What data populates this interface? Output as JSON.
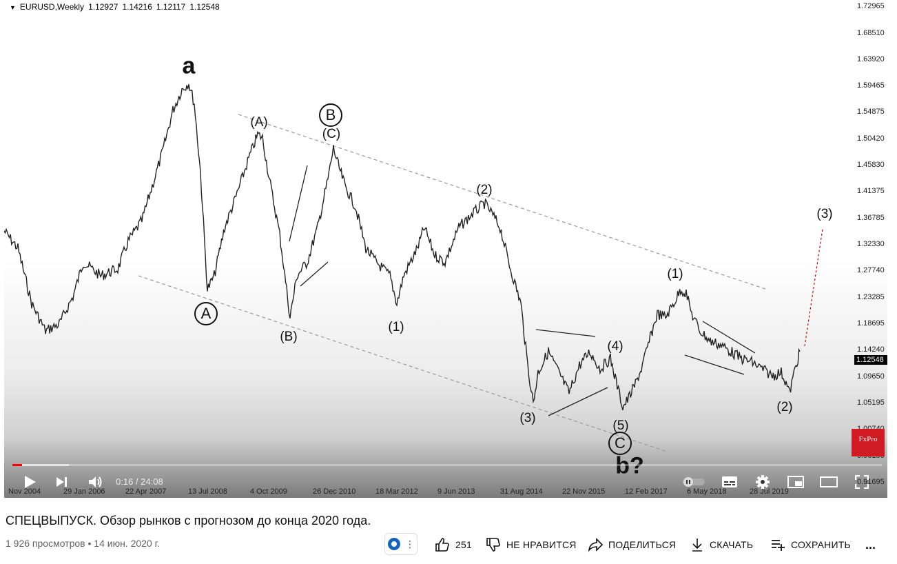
{
  "chart": {
    "symbol": "EURUSD,Weekly",
    "ohlc": [
      "1.12927",
      "1.14216",
      "1.12117",
      "1.12548"
    ],
    "price_ticks": [
      "1.72965",
      "1.68510",
      "1.63920",
      "1.59465",
      "1.54875",
      "1.50420",
      "1.45830",
      "1.41375",
      "1.36785",
      "1.32330",
      "1.27740",
      "1.23285",
      "1.18695",
      "1.14240",
      "1.09650",
      "1.05195",
      "1.00740",
      "0.96150",
      "0.91695"
    ],
    "current_price": "1.12548",
    "date_ticks": [
      "Nov 2004",
      "29 Jan 2006",
      "22 Apr 2007",
      "13 Jul 2008",
      "4 Oct 2009",
      "26 Dec 2010",
      "18 Mar 2012",
      "9 Jun 2013",
      "31 Aug 2014",
      "22 Nov 2015",
      "12 Feb 2017",
      "6 May 2018",
      "28 Jul 2019"
    ],
    "wave_labels": {
      "a": "a",
      "A_circ": "A",
      "A_paren": "(A)",
      "B_circ": "B",
      "C_top": "(C)",
      "B_paren": "(B)",
      "w1_2011": "(1)",
      "w2_2014": "(2)",
      "w3_2015": "(3)",
      "w4_2016": "(4)",
      "w5_2017": "(5)",
      "C_circ": "C",
      "b_q": "b?",
      "w1_2018": "(1)",
      "w2_2019": "(2)",
      "w3_target": "(3)"
    },
    "colors": {
      "price_line": "#222222",
      "channel": "#999999",
      "projection": "#d00000"
    }
  },
  "branding": {
    "fxpro": "FxPro"
  },
  "player": {
    "time": "0:16 / 24:08",
    "progress_fraction": 0.0111,
    "buffer_fraction": 0.065,
    "icons": [
      "play-icon",
      "next-icon",
      "volume-icon",
      "autoplay-toggle-icon",
      "subtitles-icon",
      "settings-icon",
      "miniplayer-icon",
      "theater-icon",
      "fullscreen-icon"
    ]
  },
  "video": {
    "title": "СПЕЦВЫПУСК. Обзор рынков с прогнозом до конца 2020 года.",
    "meta": "1 926 просмотров • 14 июн. 2020 г.",
    "likes": "251",
    "dislike_label": "НЕ НРАВИТСЯ",
    "share_label": "ПОДЕЛИТЬСЯ",
    "download_label": "СКАЧАТЬ",
    "save_label": "СОХРАНИТЬ",
    "more_label": "..."
  }
}
